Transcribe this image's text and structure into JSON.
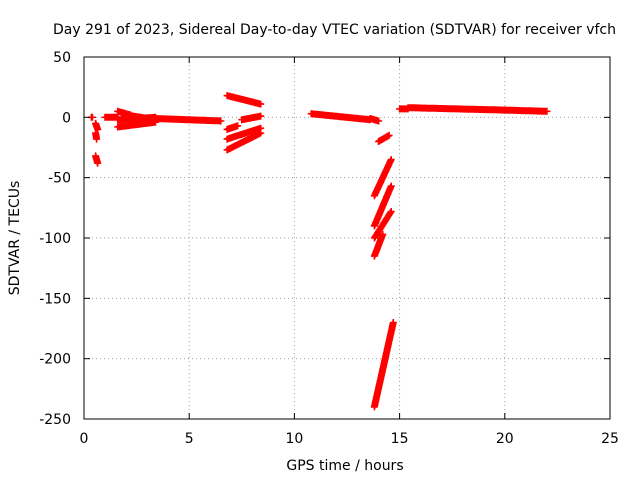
{
  "chart_data": {
    "type": "scatter",
    "title": "Day 291 of 2023, Sidereal Day-to-day VTEC variation (SDTVAR) for receiver vfch",
    "xlabel": "GPS time / hours",
    "ylabel": "SDTVAR / TECUs",
    "xlim": [
      0,
      25
    ],
    "ylim": [
      -250,
      50
    ],
    "xticks": [
      0,
      5,
      10,
      15,
      20,
      25
    ],
    "yticks": [
      50,
      0,
      -50,
      -100,
      -150,
      -200,
      -250
    ],
    "grid": true,
    "marker_color": "#ff0000",
    "segments": [
      [
        [
          0.35,
          0
        ],
        [
          0.4,
          0
        ]
      ],
      [
        [
          0.55,
          -5
        ],
        [
          0.65,
          -10
        ]
      ],
      [
        [
          0.55,
          -13
        ],
        [
          0.6,
          -18
        ]
      ],
      [
        [
          0.55,
          -32
        ],
        [
          0.65,
          -38
        ]
      ],
      [
        [
          1.0,
          0
        ],
        [
          1.6,
          0
        ]
      ],
      [
        [
          1.6,
          5
        ],
        [
          2.2,
          2
        ]
      ],
      [
        [
          1.6,
          -8
        ],
        [
          3.4,
          -4
        ]
      ],
      [
        [
          1.6,
          -2
        ],
        [
          3.4,
          0
        ]
      ],
      [
        [
          2.0,
          2
        ],
        [
          3.4,
          -2
        ]
      ],
      [
        [
          3.4,
          -1
        ],
        [
          6.5,
          -3
        ]
      ],
      [
        [
          6.8,
          18
        ],
        [
          8.4,
          11
        ]
      ],
      [
        [
          6.8,
          -10
        ],
        [
          7.3,
          -7
        ]
      ],
      [
        [
          6.8,
          -18
        ],
        [
          8.4,
          -9
        ]
      ],
      [
        [
          6.8,
          -27
        ],
        [
          8.4,
          -13
        ]
      ],
      [
        [
          7.5,
          -2
        ],
        [
          8.4,
          1
        ]
      ],
      [
        [
          10.8,
          3
        ],
        [
          13.6,
          -2
        ]
      ],
      [
        [
          13.6,
          -1
        ],
        [
          14.0,
          -3
        ]
      ],
      [
        [
          14.0,
          -20
        ],
        [
          14.5,
          -15
        ]
      ],
      [
        [
          13.8,
          -65
        ],
        [
          14.6,
          -35
        ]
      ],
      [
        [
          13.8,
          -90
        ],
        [
          14.6,
          -57
        ]
      ],
      [
        [
          13.8,
          -100
        ],
        [
          14.6,
          -78
        ]
      ],
      [
        [
          13.8,
          -115
        ],
        [
          14.2,
          -97
        ]
      ],
      [
        [
          13.8,
          -240
        ],
        [
          14.7,
          -170
        ]
      ],
      [
        [
          15.0,
          7
        ],
        [
          15.4,
          7
        ]
      ],
      [
        [
          15.4,
          8
        ],
        [
          20.0,
          6
        ]
      ],
      [
        [
          20.0,
          6
        ],
        [
          22.0,
          5
        ]
      ]
    ]
  }
}
